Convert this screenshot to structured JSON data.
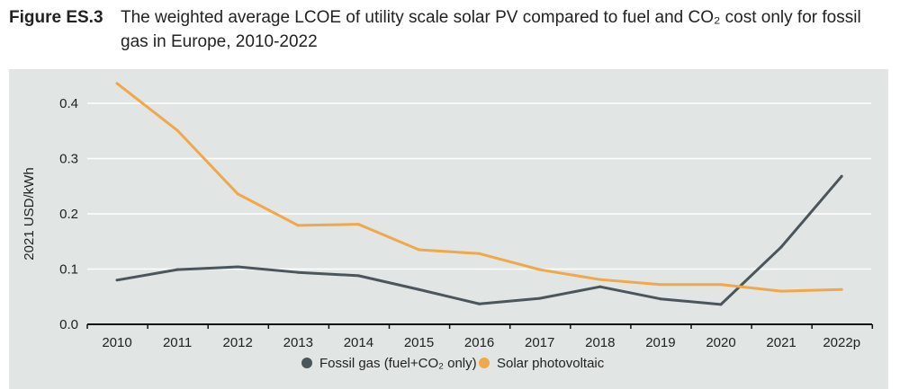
{
  "figure": {
    "label": "Figure ES.3",
    "title": "The weighted average LCOE of utility scale solar PV compared to fuel and CO₂ cost only for fossil gas in Europe, 2010-2022"
  },
  "chart_data": {
    "type": "line",
    "ylabel": "2021 USD/kWh",
    "xlabel": "",
    "ylim": [
      0,
      0.4
    ],
    "yticks": [
      "0.0",
      "0.1",
      "0.2",
      "0.3",
      "0.4"
    ],
    "categories": [
      "2010",
      "2011",
      "2012",
      "2013",
      "2014",
      "2015",
      "2016",
      "2017",
      "2018",
      "2019",
      "2020",
      "2021",
      "2022p"
    ],
    "grid": true,
    "legend_position": "bottom",
    "series": [
      {
        "name": "Fossil gas (fuel+CO₂ only)",
        "color": "#4a565c",
        "values": [
          0.08,
          0.099,
          0.104,
          0.094,
          0.088,
          0.063,
          0.037,
          0.047,
          0.068,
          0.046,
          0.036,
          0.14,
          0.268
        ]
      },
      {
        "name": "Solar photovoltaic",
        "color": "#f0a848",
        "values": [
          0.436,
          0.351,
          0.236,
          0.179,
          0.181,
          0.135,
          0.128,
          0.099,
          0.081,
          0.072,
          0.072,
          0.06,
          0.063
        ]
      }
    ]
  },
  "colors": {
    "panel_background": "#e1e5e3",
    "gridline": "#ffffff"
  }
}
